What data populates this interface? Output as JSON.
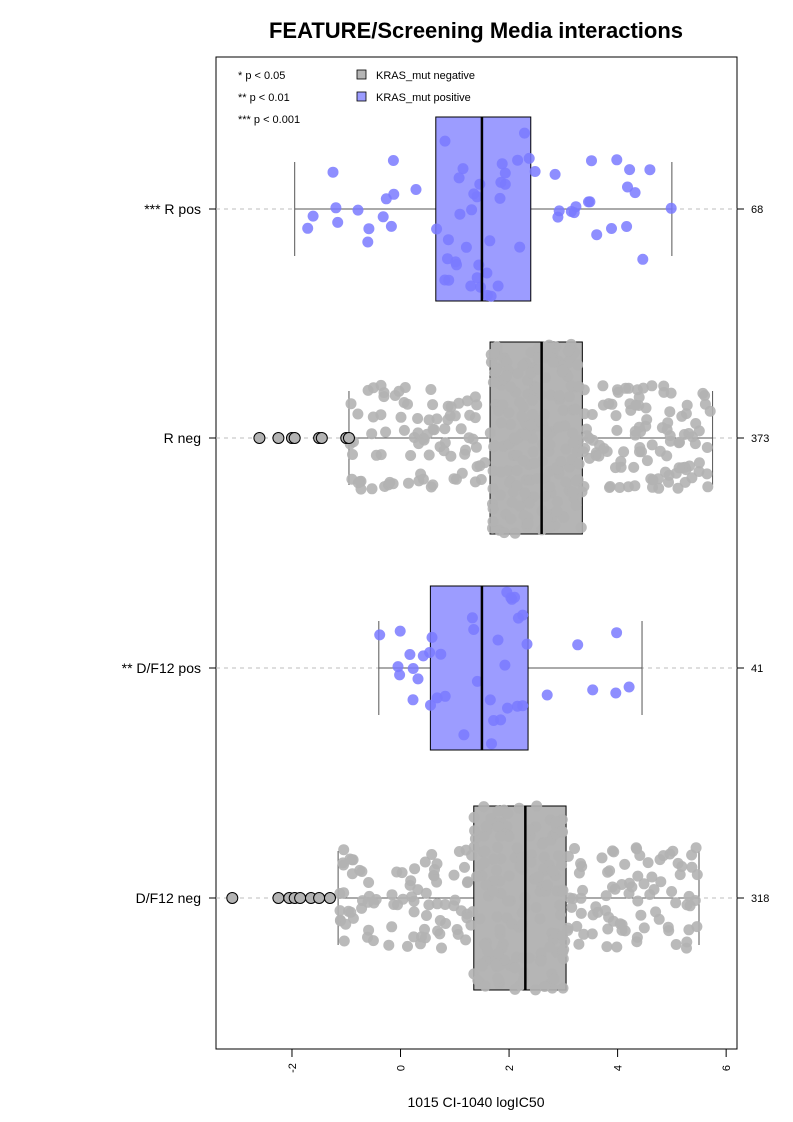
{
  "chart_data": {
    "type": "boxplot",
    "orientation": "horizontal",
    "title": "FEATURE/Screening Media interactions",
    "xlabel": "1015 CI-1040 logIC50",
    "xlim": [
      -3.4,
      6.2
    ],
    "xticks": [
      -2,
      0,
      2,
      4,
      6
    ],
    "colors": {
      "positive_box": "#9c9cff",
      "positive_point": "#7a7aff",
      "negative_box": "#b5b5b5",
      "negative_point": "#b3b3b3"
    },
    "significance_legend": [
      "* p < 0.05",
      "** p < 0.01",
      "*** p < 0.001"
    ],
    "legend": [
      {
        "label": "KRAS_mut negative",
        "color": "#b5b5b5"
      },
      {
        "label": "KRAS_mut positive",
        "color": "#9c9cff"
      }
    ],
    "groups": [
      {
        "label": "*** R pos",
        "n": "68",
        "status": "positive",
        "whisker_low": -1.95,
        "q1": 0.65,
        "median": 1.5,
        "q3": 2.4,
        "whisker_high": 5.0,
        "outliers": []
      },
      {
        "label": "R neg",
        "n": "373",
        "status": "negative",
        "whisker_low": -0.95,
        "q1": 1.65,
        "median": 2.6,
        "q3": 3.35,
        "whisker_high": 5.75,
        "outliers": [
          -2.6,
          -2.25,
          -2.0,
          -1.95,
          -1.5,
          -1.45,
          -1.0,
          -0.95
        ]
      },
      {
        "label": "** D/F12 pos",
        "n": "41",
        "status": "positive",
        "whisker_low": -0.4,
        "q1": 0.55,
        "median": 1.5,
        "q3": 2.35,
        "whisker_high": 4.45,
        "outliers": []
      },
      {
        "label": "D/F12 neg",
        "n": "318",
        "status": "negative",
        "whisker_low": -1.15,
        "q1": 1.35,
        "median": 2.3,
        "q3": 3.05,
        "whisker_high": 5.5,
        "outliers": [
          -3.1,
          -2.25,
          -2.05,
          -1.95,
          -1.85,
          -1.65,
          -1.5,
          -1.3
        ]
      }
    ]
  }
}
